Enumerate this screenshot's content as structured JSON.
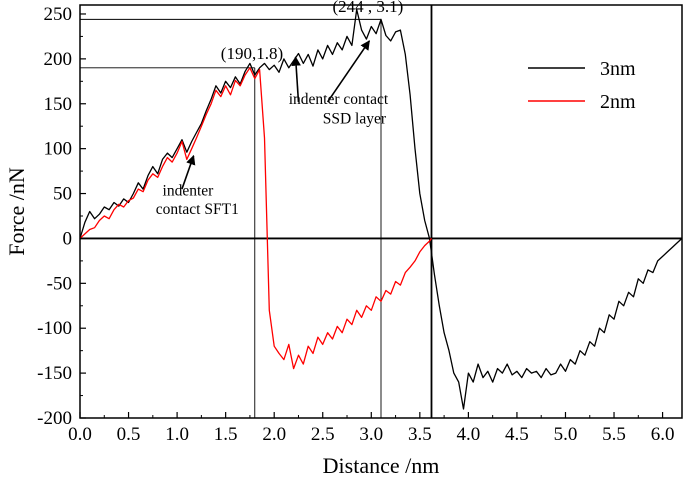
{
  "chart_data": {
    "type": "line",
    "xlabel": "Distance /nm",
    "ylabel": "Force /nN",
    "xlim": [
      0.0,
      6.2
    ],
    "ylim": [
      -200,
      260
    ],
    "x_ticks": [
      "0.0",
      "0.5",
      "1.0",
      "1.5",
      "2.0",
      "2.5",
      "3.0",
      "3.5",
      "4.0",
      "4.5",
      "5.0",
      "5.5",
      "6.0"
    ],
    "y_ticks": [
      "-200",
      "-150",
      "-100",
      "-50",
      "0",
      "50",
      "100",
      "150",
      "200",
      "250"
    ],
    "grid": false,
    "legend": {
      "position": "top-right",
      "entries": [
        {
          "label": "3nm",
          "color": "#000000"
        },
        {
          "label": "2nm",
          "color": "#ff0000"
        }
      ]
    },
    "series": [
      {
        "name": "3nm",
        "color": "#000000",
        "points": [
          [
            0.0,
            0
          ],
          [
            0.05,
            18
          ],
          [
            0.1,
            30
          ],
          [
            0.15,
            22
          ],
          [
            0.2,
            27
          ],
          [
            0.25,
            35
          ],
          [
            0.3,
            32
          ],
          [
            0.35,
            40
          ],
          [
            0.4,
            36
          ],
          [
            0.45,
            44
          ],
          [
            0.5,
            40
          ],
          [
            0.55,
            50
          ],
          [
            0.6,
            62
          ],
          [
            0.65,
            55
          ],
          [
            0.7,
            70
          ],
          [
            0.75,
            80
          ],
          [
            0.8,
            72
          ],
          [
            0.85,
            88
          ],
          [
            0.9,
            95
          ],
          [
            0.95,
            90
          ],
          [
            1.0,
            100
          ],
          [
            1.05,
            110
          ],
          [
            1.1,
            96
          ],
          [
            1.15,
            108
          ],
          [
            1.2,
            118
          ],
          [
            1.25,
            128
          ],
          [
            1.3,
            142
          ],
          [
            1.35,
            155
          ],
          [
            1.4,
            170
          ],
          [
            1.45,
            162
          ],
          [
            1.5,
            175
          ],
          [
            1.55,
            168
          ],
          [
            1.6,
            180
          ],
          [
            1.65,
            172
          ],
          [
            1.7,
            186
          ],
          [
            1.75,
            195
          ],
          [
            1.8,
            182
          ],
          [
            1.85,
            190
          ],
          [
            1.9,
            195
          ],
          [
            1.95,
            188
          ],
          [
            2.0,
            193
          ],
          [
            2.05,
            185
          ],
          [
            2.1,
            200
          ],
          [
            2.15,
            190
          ],
          [
            2.2,
            198
          ],
          [
            2.25,
            206
          ],
          [
            2.3,
            195
          ],
          [
            2.35,
            205
          ],
          [
            2.4,
            192
          ],
          [
            2.45,
            210
          ],
          [
            2.5,
            200
          ],
          [
            2.55,
            215
          ],
          [
            2.6,
            205
          ],
          [
            2.65,
            218
          ],
          [
            2.7,
            210
          ],
          [
            2.75,
            225
          ],
          [
            2.8,
            215
          ],
          [
            2.85,
            255
          ],
          [
            2.9,
            232
          ],
          [
            2.95,
            222
          ],
          [
            3.0,
            236
          ],
          [
            3.05,
            228
          ],
          [
            3.1,
            244
          ],
          [
            3.15,
            226
          ],
          [
            3.2,
            220
          ],
          [
            3.25,
            230
          ],
          [
            3.3,
            232
          ],
          [
            3.35,
            205
          ],
          [
            3.4,
            160
          ],
          [
            3.45,
            100
          ],
          [
            3.5,
            50
          ],
          [
            3.55,
            20
          ],
          [
            3.6,
            0
          ],
          [
            3.65,
            -40
          ],
          [
            3.7,
            -75
          ],
          [
            3.75,
            -105
          ],
          [
            3.8,
            -125
          ],
          [
            3.85,
            -150
          ],
          [
            3.9,
            -160
          ],
          [
            3.95,
            -190
          ],
          [
            4.0,
            -150
          ],
          [
            4.05,
            -160
          ],
          [
            4.1,
            -140
          ],
          [
            4.15,
            -155
          ],
          [
            4.2,
            -148
          ],
          [
            4.25,
            -160
          ],
          [
            4.3,
            -145
          ],
          [
            4.35,
            -150
          ],
          [
            4.4,
            -140
          ],
          [
            4.45,
            -152
          ],
          [
            4.5,
            -148
          ],
          [
            4.55,
            -155
          ],
          [
            4.6,
            -145
          ],
          [
            4.65,
            -150
          ],
          [
            4.7,
            -148
          ],
          [
            4.75,
            -155
          ],
          [
            4.8,
            -145
          ],
          [
            4.85,
            -152
          ],
          [
            4.9,
            -150
          ],
          [
            4.95,
            -140
          ],
          [
            5.0,
            -148
          ],
          [
            5.05,
            -135
          ],
          [
            5.1,
            -140
          ],
          [
            5.15,
            -125
          ],
          [
            5.2,
            -130
          ],
          [
            5.25,
            -115
          ],
          [
            5.3,
            -120
          ],
          [
            5.35,
            -100
          ],
          [
            5.4,
            -105
          ],
          [
            5.45,
            -85
          ],
          [
            5.5,
            -90
          ],
          [
            5.55,
            -70
          ],
          [
            5.6,
            -75
          ],
          [
            5.65,
            -60
          ],
          [
            5.7,
            -65
          ],
          [
            5.75,
            -45
          ],
          [
            5.8,
            -50
          ],
          [
            5.85,
            -35
          ],
          [
            5.9,
            -38
          ],
          [
            5.95,
            -25
          ],
          [
            6.0,
            -20
          ],
          [
            6.05,
            -15
          ],
          [
            6.1,
            -10
          ],
          [
            6.15,
            -5
          ],
          [
            6.2,
            0
          ]
        ]
      },
      {
        "name": "2nm",
        "color": "#ff0000",
        "points": [
          [
            0.0,
            0
          ],
          [
            0.05,
            5
          ],
          [
            0.1,
            10
          ],
          [
            0.15,
            12
          ],
          [
            0.2,
            20
          ],
          [
            0.25,
            25
          ],
          [
            0.3,
            22
          ],
          [
            0.35,
            32
          ],
          [
            0.4,
            38
          ],
          [
            0.45,
            35
          ],
          [
            0.5,
            42
          ],
          [
            0.55,
            45
          ],
          [
            0.6,
            55
          ],
          [
            0.65,
            52
          ],
          [
            0.7,
            65
          ],
          [
            0.75,
            72
          ],
          [
            0.8,
            68
          ],
          [
            0.85,
            80
          ],
          [
            0.9,
            90
          ],
          [
            0.95,
            85
          ],
          [
            1.0,
            95
          ],
          [
            1.05,
            108
          ],
          [
            1.1,
            88
          ],
          [
            1.15,
            100
          ],
          [
            1.2,
            112
          ],
          [
            1.25,
            125
          ],
          [
            1.3,
            138
          ],
          [
            1.35,
            150
          ],
          [
            1.4,
            165
          ],
          [
            1.45,
            158
          ],
          [
            1.5,
            170
          ],
          [
            1.55,
            160
          ],
          [
            1.6,
            176
          ],
          [
            1.65,
            170
          ],
          [
            1.7,
            182
          ],
          [
            1.75,
            190
          ],
          [
            1.8,
            178
          ],
          [
            1.85,
            188
          ],
          [
            1.9,
            112
          ],
          [
            1.95,
            -80
          ],
          [
            2.0,
            -120
          ],
          [
            2.05,
            -128
          ],
          [
            2.1,
            -135
          ],
          [
            2.15,
            -118
          ],
          [
            2.2,
            -145
          ],
          [
            2.25,
            -130
          ],
          [
            2.3,
            -140
          ],
          [
            2.35,
            -120
          ],
          [
            2.4,
            -128
          ],
          [
            2.45,
            -110
          ],
          [
            2.5,
            -118
          ],
          [
            2.55,
            -105
          ],
          [
            2.6,
            -112
          ],
          [
            2.65,
            -98
          ],
          [
            2.7,
            -105
          ],
          [
            2.75,
            -90
          ],
          [
            2.8,
            -96
          ],
          [
            2.85,
            -80
          ],
          [
            2.9,
            -88
          ],
          [
            2.95,
            -75
          ],
          [
            3.0,
            -80
          ],
          [
            3.05,
            -65
          ],
          [
            3.1,
            -70
          ],
          [
            3.15,
            -58
          ],
          [
            3.2,
            -62
          ],
          [
            3.25,
            -48
          ],
          [
            3.3,
            -52
          ],
          [
            3.35,
            -38
          ],
          [
            3.4,
            -32
          ],
          [
            3.45,
            -25
          ],
          [
            3.5,
            -15
          ],
          [
            3.55,
            -8
          ],
          [
            3.6,
            -3
          ],
          [
            3.62,
            0
          ]
        ]
      }
    ],
    "reference_lines": [
      {
        "type": "horizontal",
        "y": 190,
        "x_from": 0.0,
        "x_to": 1.8
      },
      {
        "type": "horizontal",
        "y": 244,
        "x_from": 0.0,
        "x_to": 3.1
      },
      {
        "type": "vertical",
        "x": 1.8,
        "y_from": -200,
        "y_to": 190
      },
      {
        "type": "vertical",
        "x": 3.1,
        "y_from": -200,
        "y_to": 244
      },
      {
        "type": "vertical",
        "x": 3.62,
        "y_from": -200,
        "y_to": 260,
        "weight": "bold"
      },
      {
        "type": "horizontal",
        "y": 0,
        "x_from": 0.0,
        "x_to": 6.2,
        "weight": "bold"
      }
    ],
    "annotations": [
      {
        "id": "coord1",
        "text": "(190,1.8)",
        "x": 1.45,
        "y": 200
      },
      {
        "id": "coord2",
        "text": "(244 , 3.1)",
        "x": 2.6,
        "y": 252
      },
      {
        "id": "note1a",
        "text": "indenter contact",
        "x": 2.15,
        "y": 150
      },
      {
        "id": "note1b",
        "text": "SSD layer",
        "x": 2.5,
        "y": 128
      },
      {
        "id": "note2a",
        "text": "indenter",
        "x": 0.85,
        "y": 48
      },
      {
        "id": "note2b",
        "text": "contact SFT1",
        "x": 0.78,
        "y": 27
      }
    ],
    "arrows": [
      {
        "from": [
          2.25,
          152
        ],
        "to": [
          2.22,
          202
        ]
      },
      {
        "from": [
          2.55,
          152
        ],
        "to": [
          2.98,
          220
        ]
      },
      {
        "from": [
          1.05,
          55
        ],
        "to": [
          1.17,
          92
        ]
      }
    ]
  }
}
